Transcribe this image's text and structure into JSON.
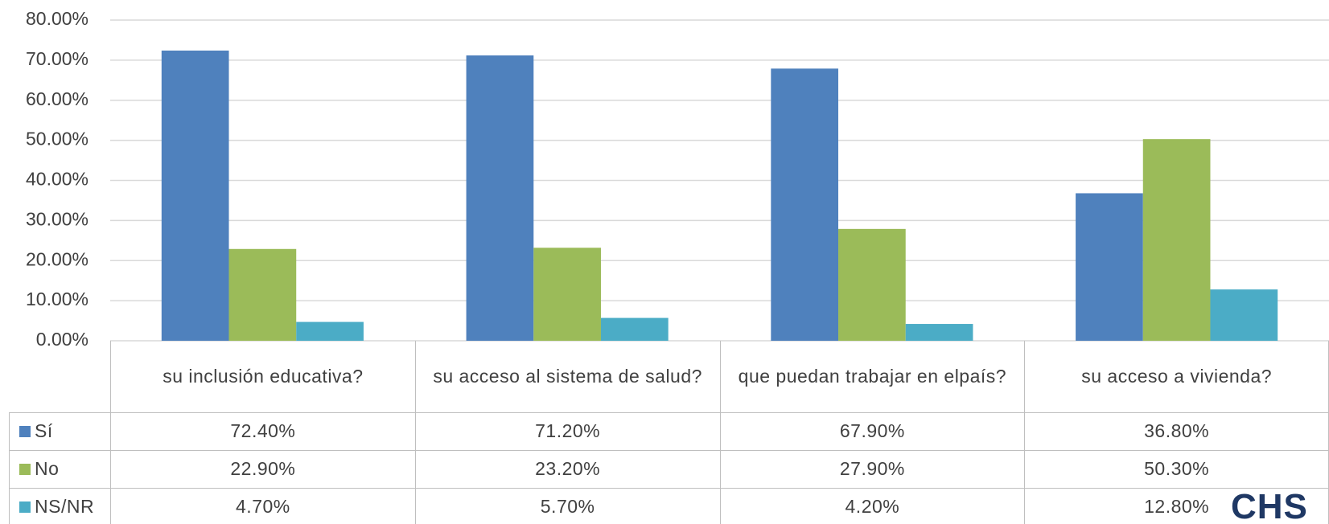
{
  "chart_data": {
    "type": "bar",
    "categories": [
      "su inclusión educativa?",
      "su acceso al sistema de salud?",
      "que puedan trabajar en elpaís?",
      "su acceso a vivienda?"
    ],
    "series": [
      {
        "name": "Sí",
        "color": "#4f81bd",
        "values": [
          72.4,
          71.2,
          67.9,
          36.8
        ],
        "value_labels": [
          "72.40%",
          "71.20%",
          "67.90%",
          "36.80%"
        ]
      },
      {
        "name": "No",
        "color": "#9bbb59",
        "values": [
          22.9,
          23.2,
          27.9,
          50.3
        ],
        "value_labels": [
          "22.90%",
          "23.20%",
          "27.90%",
          "50.30%"
        ]
      },
      {
        "name": "NS/NR",
        "color": "#4bacc6",
        "values": [
          4.7,
          5.7,
          4.2,
          12.8
        ],
        "value_labels": [
          "4.70%",
          "5.70%",
          "4.20%",
          "12.80%"
        ]
      }
    ],
    "ylim": [
      0,
      80
    ],
    "yticks": [
      {
        "value": 0,
        "label": "0.00%"
      },
      {
        "value": 10,
        "label": "10.00%"
      },
      {
        "value": 20,
        "label": "20.00%"
      },
      {
        "value": 30,
        "label": "30.00%"
      },
      {
        "value": 40,
        "label": "40.00%"
      },
      {
        "value": 50,
        "label": "50.00%"
      },
      {
        "value": 60,
        "label": "60.00%"
      },
      {
        "value": 70,
        "label": "70.00%"
      },
      {
        "value": 80,
        "label": "80.00%"
      }
    ],
    "grid": true
  },
  "logo": "CHS"
}
